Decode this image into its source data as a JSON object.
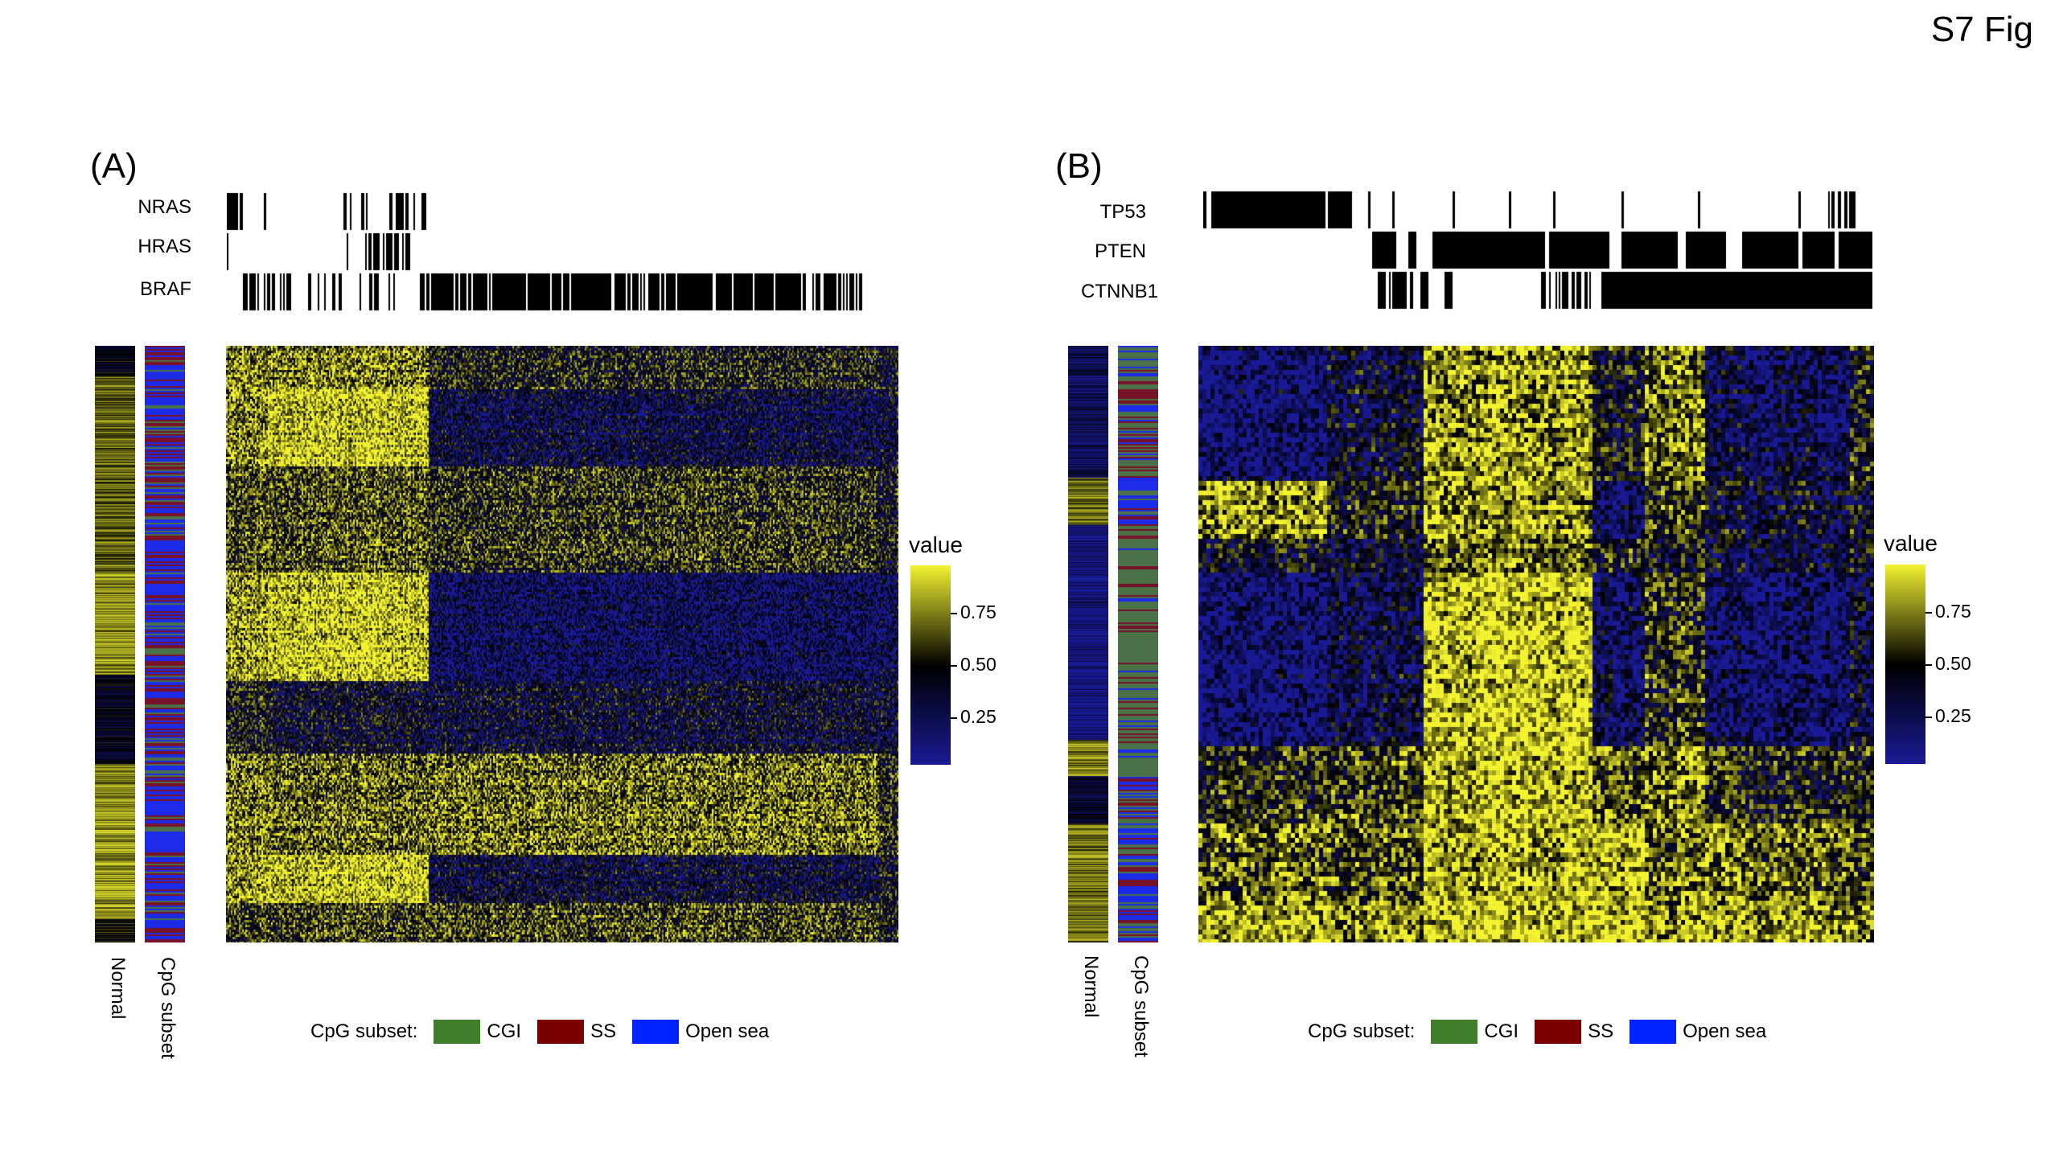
{
  "figure_label": "S7 Fig",
  "colors": {
    "low": "#1a1a96",
    "mid": "#000000",
    "high": "#f2f230",
    "cgi": "#3f7f2a",
    "ss": "#7a0000",
    "open_sea": "#0022ff",
    "mutation": "#000000"
  },
  "chart_data": [
    {
      "type": "heatmap",
      "panel": "(A)",
      "mutation_tracks": [
        "NRAS",
        "HRAS",
        "BRAF"
      ],
      "row_annotations": [
        "Normal",
        "CpG subset"
      ],
      "color_legend": {
        "title": "value",
        "ticks": [
          0.75,
          0.5,
          0.25
        ],
        "tick_labels": [
          "0.75",
          "0.50",
          "0.25"
        ],
        "range": [
          0.0,
          1.0
        ]
      },
      "cpg_legend": {
        "title": "CpG subset:",
        "items": [
          "CGI",
          "SS",
          "Open sea"
        ]
      }
    },
    {
      "type": "heatmap",
      "panel": "(B)",
      "mutation_tracks": [
        "TP53",
        "PTEN",
        "CTNNB1"
      ],
      "row_annotations": [
        "Normal",
        "CpG subset"
      ],
      "color_legend": {
        "title": "value",
        "ticks": [
          0.75,
          0.5,
          0.25
        ],
        "tick_labels": [
          "0.75",
          "0.50",
          "0.25"
        ],
        "range": [
          0.0,
          1.0
        ]
      },
      "cpg_legend": {
        "title": "CpG subset:",
        "items": [
          "CGI",
          "SS",
          "Open sea"
        ]
      }
    }
  ]
}
